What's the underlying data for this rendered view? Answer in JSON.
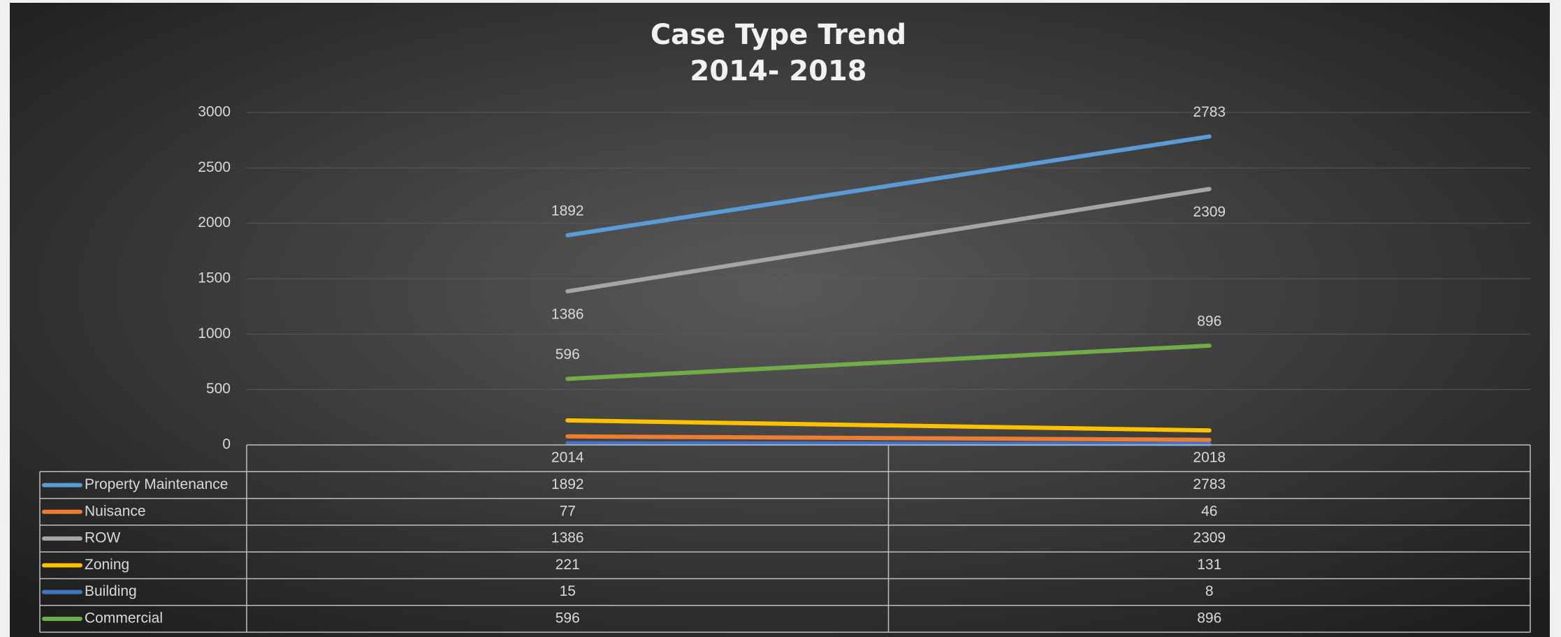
{
  "chart_data": {
    "type": "line",
    "title": "Case Type Trend",
    "subtitle": "2014- 2018",
    "categories": [
      "2014",
      "2018"
    ],
    "ylim": [
      0,
      3000
    ],
    "yticks": [
      0,
      500,
      1000,
      1500,
      2000,
      2500,
      3000
    ],
    "grid": true,
    "data_table": true,
    "series": [
      {
        "name": "Property Maintenance",
        "color": "#5b9bd5",
        "values": [
          1892,
          2783
        ],
        "data_labels": "above"
      },
      {
        "name": "Nuisance",
        "color": "#ed7d31",
        "values": [
          77,
          46
        ]
      },
      {
        "name": "ROW",
        "color": "#a5a5a5",
        "values": [
          1386,
          2309
        ],
        "data_labels": "below"
      },
      {
        "name": "Zoning",
        "color": "#ffc000",
        "values": [
          221,
          131
        ]
      },
      {
        "name": "Building",
        "color": "#4472c4",
        "values": [
          15,
          8
        ]
      },
      {
        "name": "Commercial",
        "color": "#70ad47",
        "values": [
          596,
          896
        ],
        "data_labels": "above"
      }
    ]
  }
}
